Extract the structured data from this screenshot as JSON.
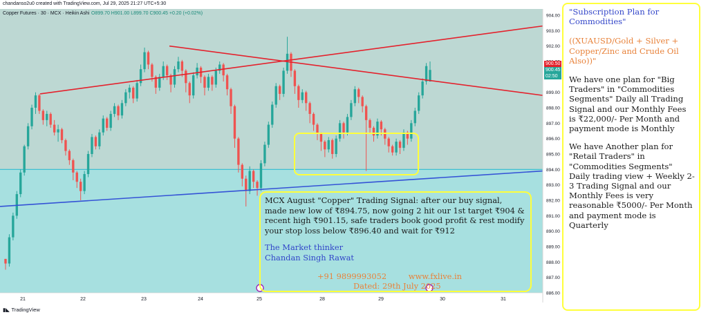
{
  "header": {
    "credit": "chandanso2u0 created with TradingView.com, Jul 29, 2025 21:27 UTC+5:30",
    "symbol_line": "Copper Futures · 30 · MCX · Heikin Ashi",
    "ohlc": "O899.70 H901.00 L899.70 C900.45 +0.20 (+0.02%)"
  },
  "footer": {
    "logo": "TradingView"
  },
  "price_labels": {
    "last_price": "900.45",
    "countdown": "02:50",
    "upper": "900.50"
  },
  "colors": {
    "up": "#26a69a",
    "down": "#ef5350",
    "trend_red": "#e4212c",
    "trend_blue": "#3452d6",
    "support": "#30bcd0",
    "box": "#ffff3a",
    "upper_fill": "#bdd8d3",
    "lower_fill": "#a7e0e0"
  },
  "signal_box": {
    "p1": "MCX August \"Copper\" Trading Signal: after our buy signal, made new low of ₹894.75, now going 2 hit our 1st target ₹904 & recent high ₹901.15, safe traders book good profit & rest modify your stop loss below ₹896.40 and wait for ₹912",
    "author1": "The Market thinker",
    "author2": "Chandan Singh Rawat",
    "phone": "+91 9899993052",
    "site": "www.fxlive.in",
    "dated": "Dated: 29th July 2025"
  },
  "subscription": {
    "title": "\"Subscription Plan for Commodities\"",
    "scope": "((XUAUSD/Gold + Silver + Copper/Zinc and Crude Oil Also))\"",
    "plan1": "We have one plan for \"Big Traders\"  in \"Commodities Segments\" Daily all Trading Signal and our Monthly Fees is ₹22,000/- Per Month and payment mode is Monthly",
    "plan2": "We have Another plan for \"Retail Traders\"  in \"Commodities Segments\" Daily trading view + Weekly 2-3 Trading Signal and our Monthly Fees is very reasonable ₹5000/- Per Month and payment mode is Quarterly"
  },
  "chart_data": {
    "type": "candlestick",
    "style": "Heikin Ashi",
    "instrument": "Copper Futures",
    "interval": "30",
    "exchange": "MCX",
    "y_ticks": [
      886,
      887,
      888,
      889,
      890,
      891,
      892,
      893,
      894,
      895,
      896,
      897,
      898,
      899,
      900,
      901,
      902,
      903,
      904
    ],
    "x_ticks": [
      "21",
      "22",
      "23",
      "24",
      "25",
      "28",
      "29",
      "30",
      "31"
    ],
    "ylim": [
      885.8,
      904.2
    ],
    "grid": false,
    "support_level": 894.0,
    "series": [
      {
        "name": "OHLC",
        "ohlc": [
          [
            888.2,
            888.2,
            887.5,
            887.9
          ],
          [
            887.9,
            889.8,
            887.7,
            889.6
          ],
          [
            889.6,
            891.2,
            889.4,
            891.0
          ],
          [
            891.0,
            892.6,
            890.8,
            892.4
          ],
          [
            892.4,
            894.0,
            892.2,
            893.8
          ],
          [
            893.8,
            895.6,
            893.6,
            895.5
          ],
          [
            895.5,
            897.0,
            895.3,
            896.8
          ],
          [
            896.8,
            898.2,
            896.6,
            898.0
          ],
          [
            898.0,
            899.0,
            897.6,
            898.8
          ],
          [
            898.8,
            898.9,
            897.6,
            897.8
          ],
          [
            897.8,
            897.9,
            896.9,
            897.2
          ],
          [
            897.2,
            897.8,
            896.8,
            897.6
          ],
          [
            897.6,
            897.7,
            896.7,
            896.9
          ],
          [
            896.9,
            897.2,
            896.2,
            896.4
          ],
          [
            896.4,
            896.9,
            895.8,
            896.6
          ],
          [
            896.6,
            896.7,
            895.7,
            895.9
          ],
          [
            895.9,
            896.0,
            894.9,
            895.2
          ],
          [
            895.2,
            895.3,
            894.3,
            894.6
          ],
          [
            894.6,
            894.7,
            893.3,
            893.8
          ],
          [
            893.8,
            893.9,
            892.8,
            893.2
          ],
          [
            893.2,
            893.4,
            892.0,
            892.6
          ],
          [
            892.6,
            893.9,
            892.4,
            893.7
          ],
          [
            893.7,
            895.2,
            893.5,
            895.0
          ],
          [
            895.0,
            896.3,
            894.8,
            896.1
          ],
          [
            896.1,
            896.2,
            895.3,
            895.5
          ],
          [
            895.5,
            896.6,
            895.3,
            896.4
          ],
          [
            896.4,
            897.5,
            896.2,
            897.3
          ],
          [
            897.3,
            897.4,
            896.5,
            896.7
          ],
          [
            896.7,
            897.8,
            896.5,
            897.6
          ],
          [
            897.6,
            898.3,
            897.4,
            898.1
          ],
          [
            898.1,
            898.2,
            897.2,
            897.5
          ],
          [
            897.5,
            898.5,
            897.3,
            898.3
          ],
          [
            898.3,
            899.2,
            898.1,
            899.0
          ],
          [
            899.0,
            899.5,
            898.6,
            899.3
          ],
          [
            899.3,
            899.4,
            898.3,
            898.6
          ],
          [
            898.6,
            899.8,
            898.4,
            899.6
          ],
          [
            899.6,
            900.8,
            899.4,
            900.5
          ],
          [
            900.5,
            901.9,
            900.3,
            901.6
          ],
          [
            901.6,
            901.7,
            900.5,
            900.8
          ],
          [
            900.8,
            900.9,
            899.7,
            900.0
          ],
          [
            900.0,
            900.1,
            898.9,
            899.3
          ],
          [
            899.3,
            900.2,
            899.1,
            900.0
          ],
          [
            900.0,
            901.0,
            899.8,
            900.7
          ],
          [
            900.7,
            900.8,
            899.8,
            900.1
          ],
          [
            900.1,
            900.2,
            899.0,
            899.5
          ],
          [
            899.5,
            900.7,
            899.3,
            900.5
          ],
          [
            900.5,
            901.3,
            900.3,
            901.0
          ],
          [
            901.0,
            901.1,
            900.0,
            900.4
          ],
          [
            900.4,
            900.5,
            899.0,
            899.6
          ],
          [
            899.6,
            899.7,
            898.3,
            898.8
          ],
          [
            898.8,
            900.3,
            898.6,
            900.1
          ],
          [
            900.1,
            900.9,
            899.9,
            900.6
          ],
          [
            900.6,
            900.7,
            899.6,
            900.0
          ],
          [
            900.0,
            900.1,
            898.8,
            899.3
          ],
          [
            899.3,
            900.2,
            899.1,
            900.0
          ],
          [
            900.0,
            900.1,
            899.1,
            899.5
          ],
          [
            899.5,
            900.6,
            899.3,
            900.4
          ],
          [
            900.4,
            901.0,
            900.2,
            900.8
          ],
          [
            900.8,
            900.9,
            899.7,
            900.1
          ],
          [
            900.1,
            900.2,
            898.8,
            899.2
          ],
          [
            899.2,
            899.3,
            897.6,
            898.1
          ],
          [
            898.1,
            898.2,
            895.4,
            896.0
          ],
          [
            896.0,
            896.1,
            893.8,
            894.3
          ],
          [
            894.3,
            894.4,
            892.9,
            893.4
          ],
          [
            893.4,
            893.6,
            891.6,
            892.6
          ],
          [
            892.6,
            894.2,
            892.4,
            893.9
          ],
          [
            893.9,
            894.0,
            892.8,
            893.2
          ],
          [
            893.2,
            893.3,
            892.3,
            892.8
          ],
          [
            892.8,
            894.6,
            892.6,
            894.4
          ],
          [
            894.4,
            895.8,
            894.2,
            895.6
          ],
          [
            895.6,
            897.1,
            895.4,
            896.9
          ],
          [
            896.9,
            898.4,
            896.7,
            898.2
          ],
          [
            898.2,
            899.6,
            898.0,
            899.4
          ],
          [
            899.4,
            899.5,
            898.5,
            898.9
          ],
          [
            898.9,
            900.6,
            898.7,
            900.4
          ],
          [
            900.4,
            902.6,
            900.2,
            901.5
          ],
          [
            901.5,
            901.6,
            900.0,
            900.4
          ],
          [
            900.4,
            900.5,
            898.9,
            899.4
          ],
          [
            899.4,
            899.5,
            898.0,
            898.5
          ],
          [
            898.5,
            899.2,
            898.3,
            899.0
          ],
          [
            899.0,
            899.1,
            897.8,
            898.3
          ],
          [
            898.3,
            898.4,
            897.0,
            897.6
          ],
          [
            897.6,
            897.7,
            896.5,
            896.9
          ],
          [
            896.9,
            897.0,
            895.9,
            896.3
          ],
          [
            896.3,
            896.4,
            895.2,
            895.8
          ],
          [
            895.8,
            895.9,
            894.8,
            895.3
          ],
          [
            895.3,
            896.1,
            895.1,
            895.9
          ],
          [
            895.9,
            896.0,
            894.7,
            895.0
          ],
          [
            895.0,
            896.2,
            894.8,
            896.0
          ],
          [
            896.0,
            897.2,
            895.8,
            897.0
          ],
          [
            897.0,
            897.1,
            896.0,
            896.4
          ],
          [
            896.4,
            897.6,
            896.2,
            897.4
          ],
          [
            897.4,
            898.5,
            897.2,
            898.3
          ],
          [
            898.3,
            899.4,
            898.1,
            899.2
          ],
          [
            899.2,
            899.3,
            898.3,
            898.7
          ],
          [
            898.7,
            898.8,
            897.7,
            898.1
          ],
          [
            898.1,
            898.2,
            893.9,
            897.2
          ],
          [
            897.2,
            897.3,
            896.3,
            896.7
          ],
          [
            896.7,
            896.8,
            895.8,
            896.2
          ],
          [
            896.2,
            897.3,
            896.0,
            897.1
          ],
          [
            897.1,
            897.2,
            896.2,
            896.6
          ],
          [
            896.6,
            896.7,
            895.6,
            896.0
          ],
          [
            896.0,
            896.1,
            895.1,
            895.5
          ],
          [
            895.5,
            895.6,
            894.9,
            895.1
          ],
          [
            895.1,
            896.0,
            894.9,
            895.8
          ],
          [
            895.8,
            895.9,
            895.0,
            895.4
          ],
          [
            895.4,
            896.6,
            895.2,
            896.4
          ],
          [
            896.4,
            896.5,
            895.6,
            896.0
          ],
          [
            896.0,
            897.2,
            895.8,
            897.0
          ],
          [
            897.0,
            898.0,
            896.8,
            897.8
          ],
          [
            897.8,
            899.0,
            897.6,
            898.8
          ],
          [
            898.8,
            899.9,
            898.6,
            899.7
          ],
          [
            899.7,
            900.9,
            899.5,
            900.7
          ],
          [
            899.7,
            901.0,
            899.7,
            900.45
          ]
        ]
      }
    ],
    "trendlines": [
      {
        "name": "rising resistance",
        "color": "red",
        "points": [
          [
            "21",
            898.9
          ],
          [
            "31",
            903.3
          ]
        ]
      },
      {
        "name": "falling resistance",
        "color": "red",
        "points": [
          [
            "23",
            902.0
          ],
          [
            "31",
            898.8
          ]
        ]
      },
      {
        "name": "rising support",
        "color": "blue",
        "points": [
          [
            "21",
            891.6
          ],
          [
            "31",
            893.9
          ]
        ]
      }
    ],
    "annotations": [
      "yellow box around lows 28-29 (894.2 - 896.4)"
    ]
  }
}
